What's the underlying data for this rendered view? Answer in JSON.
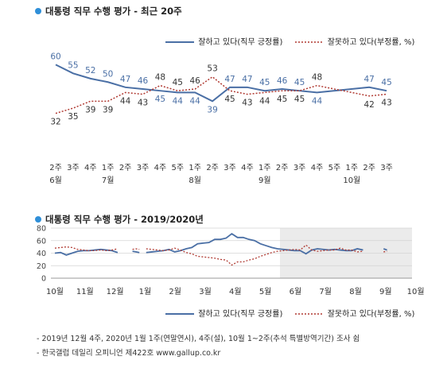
{
  "colors": {
    "approve": "#4a6fa5",
    "disapprove": "#b03a32",
    "dot": "#2f8fd8",
    "shade": "#ebebeb"
  },
  "chart1": {
    "title": "대통령 직무 수행 평가 - 최근 20주",
    "legend": {
      "approve": "잘하고 있다(직무 긍정률)",
      "disapprove": "잘못하고 있다(부정률, %)"
    },
    "week_labels": [
      "2주",
      "3주",
      "4주",
      "1주",
      "2주",
      "3주",
      "4주",
      "5주",
      "1주",
      "2주",
      "3주",
      "4주",
      "1주",
      "2주",
      "3주",
      "4주",
      "5주",
      "1주",
      "2주",
      "3주"
    ],
    "month_labels": [
      {
        "label": "6월",
        "index": 0
      },
      {
        "label": "7월",
        "index": 3
      },
      {
        "label": "8월",
        "index": 8
      },
      {
        "label": "9월",
        "index": 12
      },
      {
        "label": "10월",
        "index": 17
      }
    ]
  },
  "chart2": {
    "title": "대통령 직무 수행 평가 - 2019/2020년",
    "y_ticks": [
      "80",
      "60",
      "40",
      "20",
      "0"
    ],
    "month_labels": [
      "10월",
      "11월",
      "12월",
      "1월",
      "2월",
      "3월",
      "4월",
      "5월",
      "6월",
      "7월",
      "8월",
      "9월",
      "10월"
    ],
    "legend": {
      "approve": "잘하고 있다(직무 긍정률)",
      "disapprove": "잘못하고 있다(부정률, %)"
    }
  },
  "footnotes": [
    "- 2019년 12월 4주, 2020년 1월 1주(연말연시), 4주(설), 10월 1~2주(추석 특별방역기간) 조사 쉼",
    "- 한국갤럽 데일리 오피니언 제422호 www.gallup.co.kr"
  ],
  "chart_data": [
    {
      "type": "line",
      "title": "대통령 직무 수행 평가 - 최근 20주",
      "categories": [
        "6월 2주",
        "6월 3주",
        "6월 4주",
        "7월 1주",
        "7월 2주",
        "7월 3주",
        "7월 4주",
        "7월 5주",
        "8월 1주",
        "8월 2주",
        "8월 3주",
        "8월 4주",
        "9월 1주",
        "9월 2주",
        "9월 3주",
        "9월 4주",
        "9월 5주",
        "10월 1주",
        "10월 2주",
        "10월 3주"
      ],
      "series": [
        {
          "name": "잘하고 있다(직무 긍정률)",
          "values": [
            60,
            55,
            52,
            50,
            47,
            46,
            45,
            44,
            44,
            39,
            47,
            47,
            45,
            46,
            45,
            44,
            null,
            null,
            47,
            45
          ],
          "labels": [
            60,
            55,
            52,
            50,
            47,
            46,
            45,
            44,
            44,
            39,
            47,
            47,
            45,
            46,
            45,
            44,
            null,
            null,
            47,
            45
          ]
        },
        {
          "name": "잘못하고 있다(부정률, %)",
          "values": [
            32,
            35,
            39,
            39,
            44,
            43,
            48,
            45,
            46,
            53,
            45,
            43,
            44,
            45,
            45,
            48,
            null,
            null,
            42,
            43
          ],
          "labels": [
            32,
            35,
            39,
            39,
            44,
            43,
            48,
            45,
            46,
            53,
            45,
            43,
            44,
            45,
            45,
            48,
            null,
            null,
            42,
            43
          ]
        }
      ],
      "ylim": [
        30,
        62
      ]
    },
    {
      "type": "line",
      "title": "대통령 직무 수행 평가 - 2019/2020년",
      "x_labels": [
        "10월",
        "11월",
        "12월",
        "1월",
        "2월",
        "3월",
        "4월",
        "5월",
        "6월",
        "7월",
        "8월",
        "9월",
        "10월"
      ],
      "ylim": [
        0,
        80
      ],
      "y_ticks": [
        0,
        20,
        40,
        60,
        80
      ],
      "grid": true,
      "series": [
        {
          "name": "잘하고 있다(직무 긍정률)",
          "segments": [
            [
              [
                0,
                40
              ],
              [
                0.25,
                41
              ],
              [
                0.5,
                37
              ],
              [
                0.75,
                40
              ],
              [
                1,
                43
              ],
              [
                1.25,
                44
              ],
              [
                1.5,
                44
              ],
              [
                1.75,
                45
              ],
              [
                2,
                46
              ],
              [
                2.25,
                45
              ],
              [
                2.5,
                44
              ],
              [
                2.75,
                41
              ]
            ],
            [
              [
                3.4,
                43
              ],
              [
                3.55,
                42
              ],
              [
                3.7,
                41
              ]
            ],
            [
              [
                4,
                41
              ],
              [
                4.25,
                42
              ],
              [
                4.5,
                43
              ],
              [
                4.75,
                44
              ],
              [
                5,
                46
              ],
              [
                5.25,
                42
              ],
              [
                5.5,
                44
              ],
              [
                5.75,
                47
              ],
              [
                6,
                49
              ],
              [
                6.25,
                55
              ],
              [
                6.5,
                56
              ],
              [
                6.75,
                57
              ],
              [
                7,
                62
              ],
              [
                7.25,
                62
              ],
              [
                7.5,
                64
              ],
              [
                7.75,
                71
              ],
              [
                8,
                65
              ],
              [
                8.25,
                65
              ],
              [
                8.5,
                62
              ],
              [
                8.75,
                60
              ],
              [
                9,
                55
              ],
              [
                9.25,
                52
              ],
              [
                9.5,
                49
              ],
              [
                9.75,
                47
              ],
              [
                10,
                46
              ],
              [
                10.25,
                45
              ],
              [
                10.5,
                44
              ],
              [
                10.75,
                44
              ],
              [
                11,
                39
              ],
              [
                11.25,
                45
              ],
              [
                11.5,
                47
              ],
              [
                11.75,
                46
              ],
              [
                12,
                45
              ],
              [
                12.25,
                46
              ],
              [
                12.5,
                45
              ],
              [
                12.75,
                44
              ],
              [
                13,
                44
              ],
              [
                13.25,
                47
              ],
              [
                13.5,
                45
              ]
            ],
            [
              [
                14.4,
                47
              ],
              [
                14.55,
                45
              ]
            ]
          ]
        },
        {
          "name": "잘못하고 있다(부정률, %)",
          "segments": [
            [
              [
                0,
                48
              ],
              [
                0.25,
                49
              ],
              [
                0.5,
                50
              ],
              [
                0.75,
                49
              ],
              [
                1,
                46
              ],
              [
                1.25,
                45
              ],
              [
                1.5,
                44
              ],
              [
                1.75,
                44
              ],
              [
                2,
                45
              ],
              [
                2.25,
                44
              ],
              [
                2.5,
                45
              ],
              [
                2.75,
                47
              ]
            ],
            [
              [
                3.4,
                46
              ],
              [
                3.55,
                47
              ],
              [
                3.7,
                46
              ]
            ],
            [
              [
                4,
                47
              ],
              [
                4.25,
                46
              ],
              [
                4.5,
                45
              ],
              [
                4.75,
                44
              ],
              [
                5,
                45
              ],
              [
                5.25,
                48
              ],
              [
                5.5,
                45
              ],
              [
                5.75,
                41
              ],
              [
                6,
                39
              ],
              [
                6.25,
                35
              ],
              [
                6.5,
                34
              ],
              [
                6.75,
                33
              ],
              [
                7,
                32
              ],
              [
                7.25,
                30
              ],
              [
                7.5,
                29
              ],
              [
                7.75,
                21
              ],
              [
                8,
                26
              ],
              [
                8.25,
                26
              ],
              [
                8.5,
                29
              ],
              [
                8.75,
                31
              ],
              [
                9,
                35
              ],
              [
                9.25,
                38
              ],
              [
                9.5,
                41
              ],
              [
                9.75,
                43
              ],
              [
                10,
                44
              ],
              [
                10.25,
                45
              ],
              [
                10.5,
                46
              ],
              [
                10.75,
                45
              ],
              [
                11,
                53
              ],
              [
                11.25,
                45
              ],
              [
                11.5,
                43
              ],
              [
                11.75,
                44
              ],
              [
                12,
                45
              ],
              [
                12.25,
                45
              ],
              [
                12.5,
                48
              ],
              [
                12.75,
                45
              ],
              [
                13,
                45
              ],
              [
                13.25,
                42
              ],
              [
                13.5,
                43
              ]
            ],
            [
              [
                14.4,
                42
              ],
              [
                14.55,
                43
              ]
            ]
          ]
        }
      ]
    }
  ]
}
